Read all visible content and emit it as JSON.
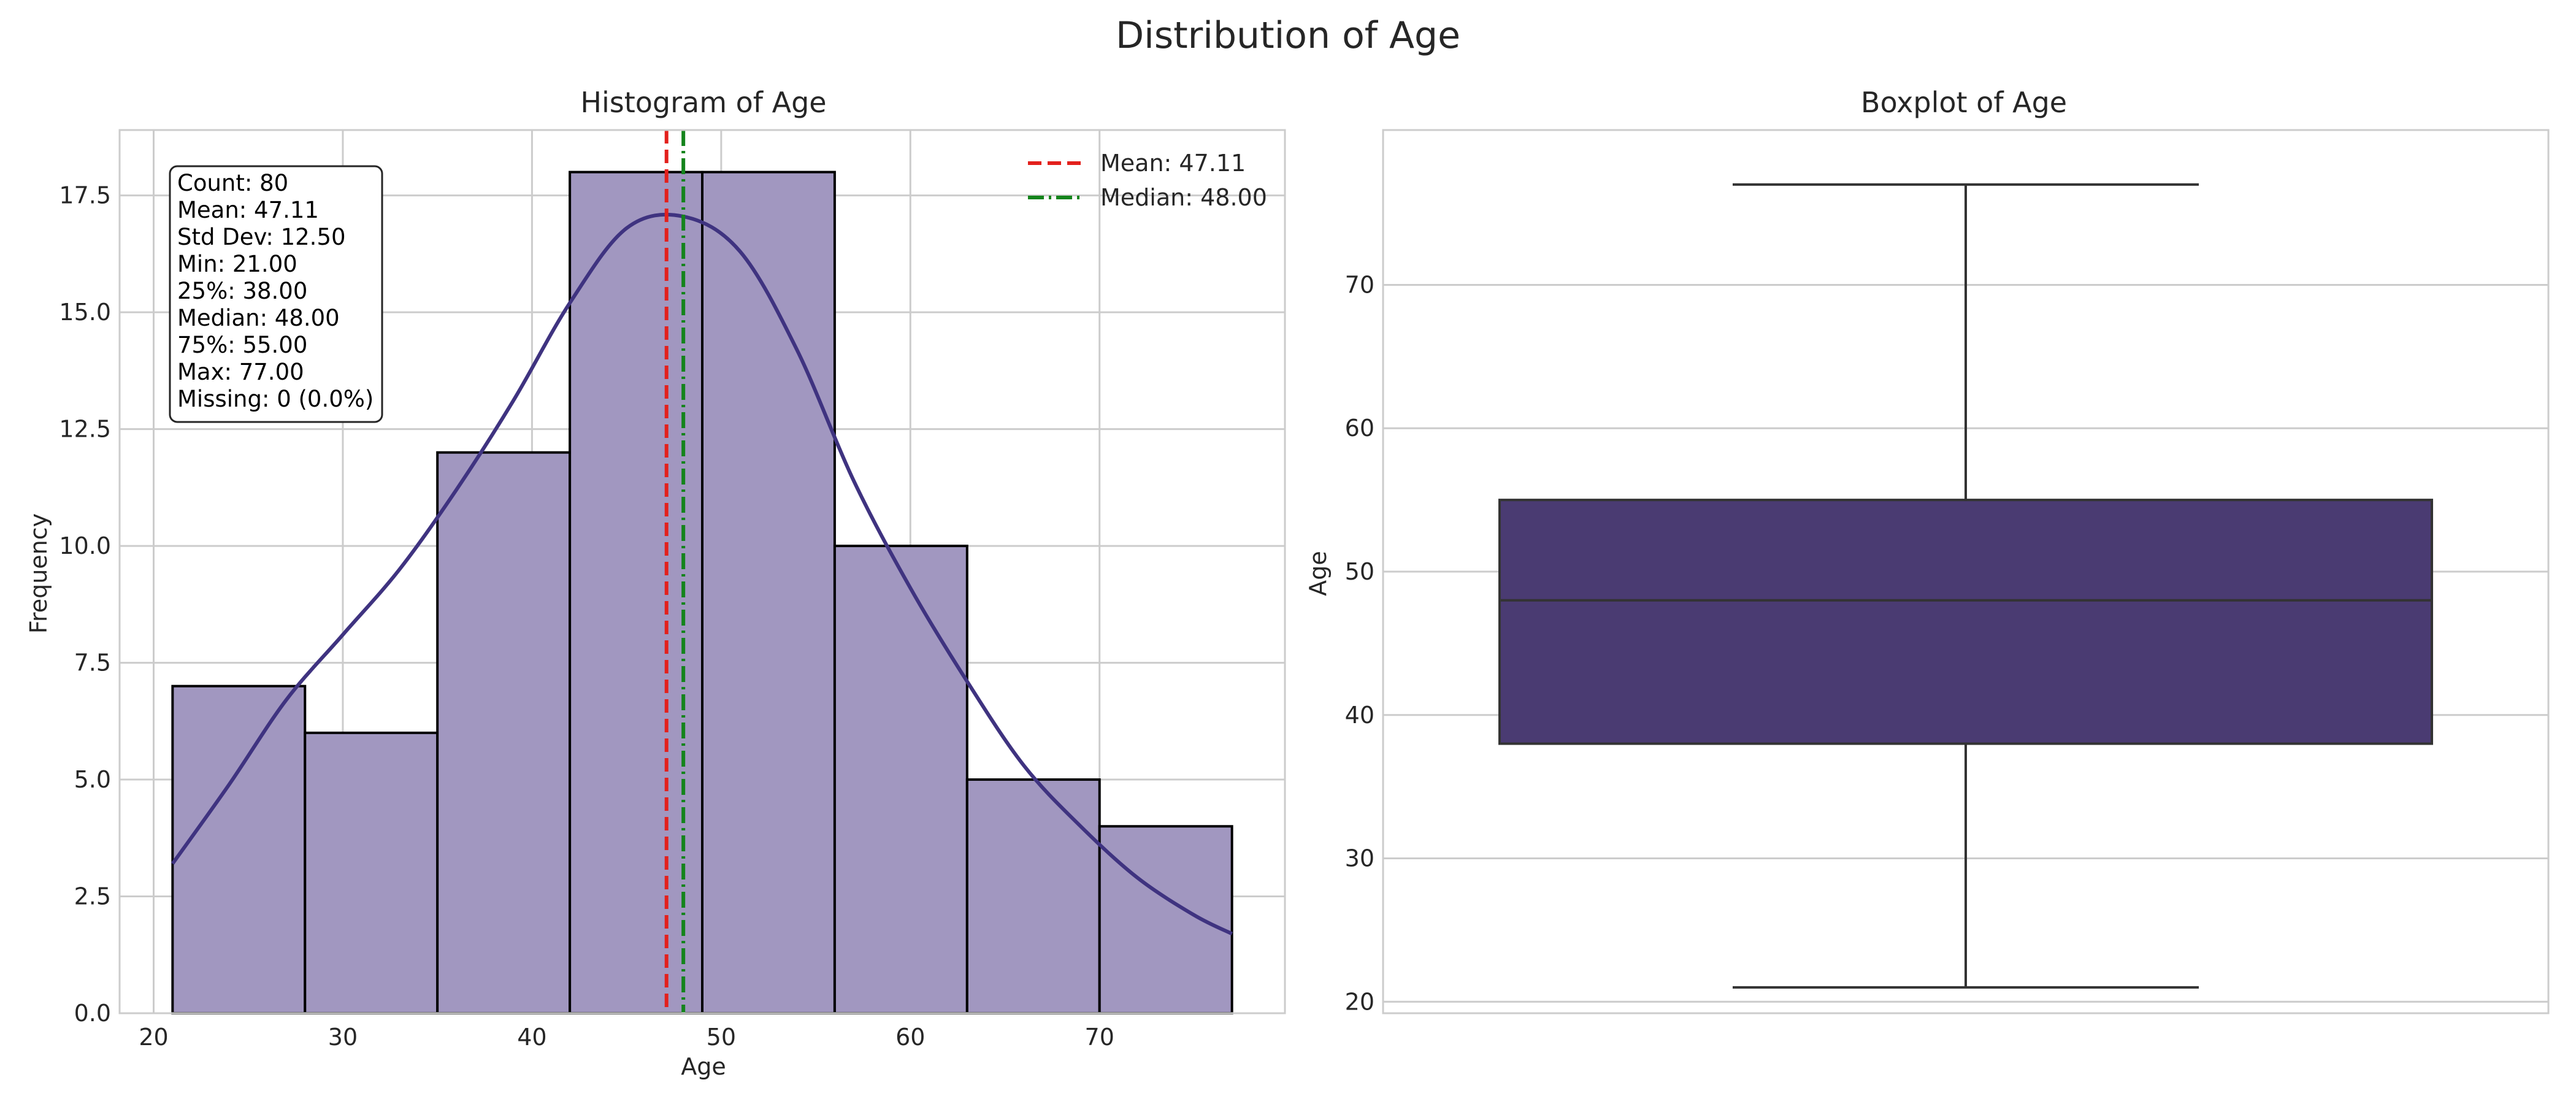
{
  "figure": {
    "title": "Distribution of Age"
  },
  "colors": {
    "bar_fill": "#a197c0",
    "kde": "#3f3380",
    "box_fill": "#4a3b72",
    "mean_line": "#e3201c",
    "median_line": "#14841c",
    "grid": "#cccccc",
    "frame": "#cccccc",
    "text": "#262626"
  },
  "chart_data": [
    {
      "type": "bar",
      "subtype": "histogram",
      "title": "Histogram of Age",
      "xlabel": "Age",
      "ylabel": "Frequency",
      "xlim": [
        18.2,
        79.8
      ],
      "ylim": [
        0,
        18.9
      ],
      "xticks": [
        20,
        30,
        40,
        50,
        60,
        70
      ],
      "yticks": [
        0.0,
        2.5,
        5.0,
        7.5,
        10.0,
        12.5,
        15.0,
        17.5
      ],
      "bins": [
        {
          "x0": 21,
          "x1": 28,
          "count": 7
        },
        {
          "x0": 28,
          "x1": 35,
          "count": 6
        },
        {
          "x0": 35,
          "x1": 42,
          "count": 12
        },
        {
          "x0": 42,
          "x1": 49,
          "count": 18
        },
        {
          "x0": 49,
          "x1": 56,
          "count": 18
        },
        {
          "x0": 56,
          "x1": 63,
          "count": 10
        },
        {
          "x0": 63,
          "x1": 70,
          "count": 5
        },
        {
          "x0": 70,
          "x1": 77,
          "count": 4
        }
      ],
      "kde": {
        "x": [
          21,
          24,
          27,
          30,
          33,
          36,
          39,
          42,
          45,
          48,
          51,
          54,
          57,
          60,
          63,
          66,
          69,
          72,
          75,
          77
        ],
        "y": [
          3.2,
          4.9,
          6.7,
          8.1,
          9.5,
          11.2,
          13.1,
          15.2,
          16.8,
          17.05,
          16.3,
          14.2,
          11.4,
          9.1,
          7.1,
          5.3,
          4.0,
          2.9,
          2.1,
          1.7
        ]
      },
      "reference_lines": [
        {
          "label": "Mean: 47.11",
          "x": 47.11,
          "style": "dashed",
          "color": "#e3201c"
        },
        {
          "label": "Median: 48.00",
          "x": 48.0,
          "style": "dashdot",
          "color": "#14841c"
        }
      ],
      "legend_position": "top-right",
      "stats_box": [
        "Count: 80",
        "Mean: 47.11",
        "Std Dev: 12.50",
        "Min: 21.00",
        "25%: 38.00",
        "Median: 48.00",
        "75%: 55.00",
        "Max: 77.00",
        "Missing: 0 (0.0%)"
      ],
      "grid": true
    },
    {
      "type": "box",
      "title": "Boxplot of Age",
      "ylabel": "Age",
      "ylim": [
        19.2,
        80.8
      ],
      "yticks": [
        20,
        30,
        40,
        50,
        60,
        70
      ],
      "min": 21,
      "q1": 38,
      "median": 48,
      "q3": 55,
      "max": 77,
      "grid": true
    }
  ]
}
